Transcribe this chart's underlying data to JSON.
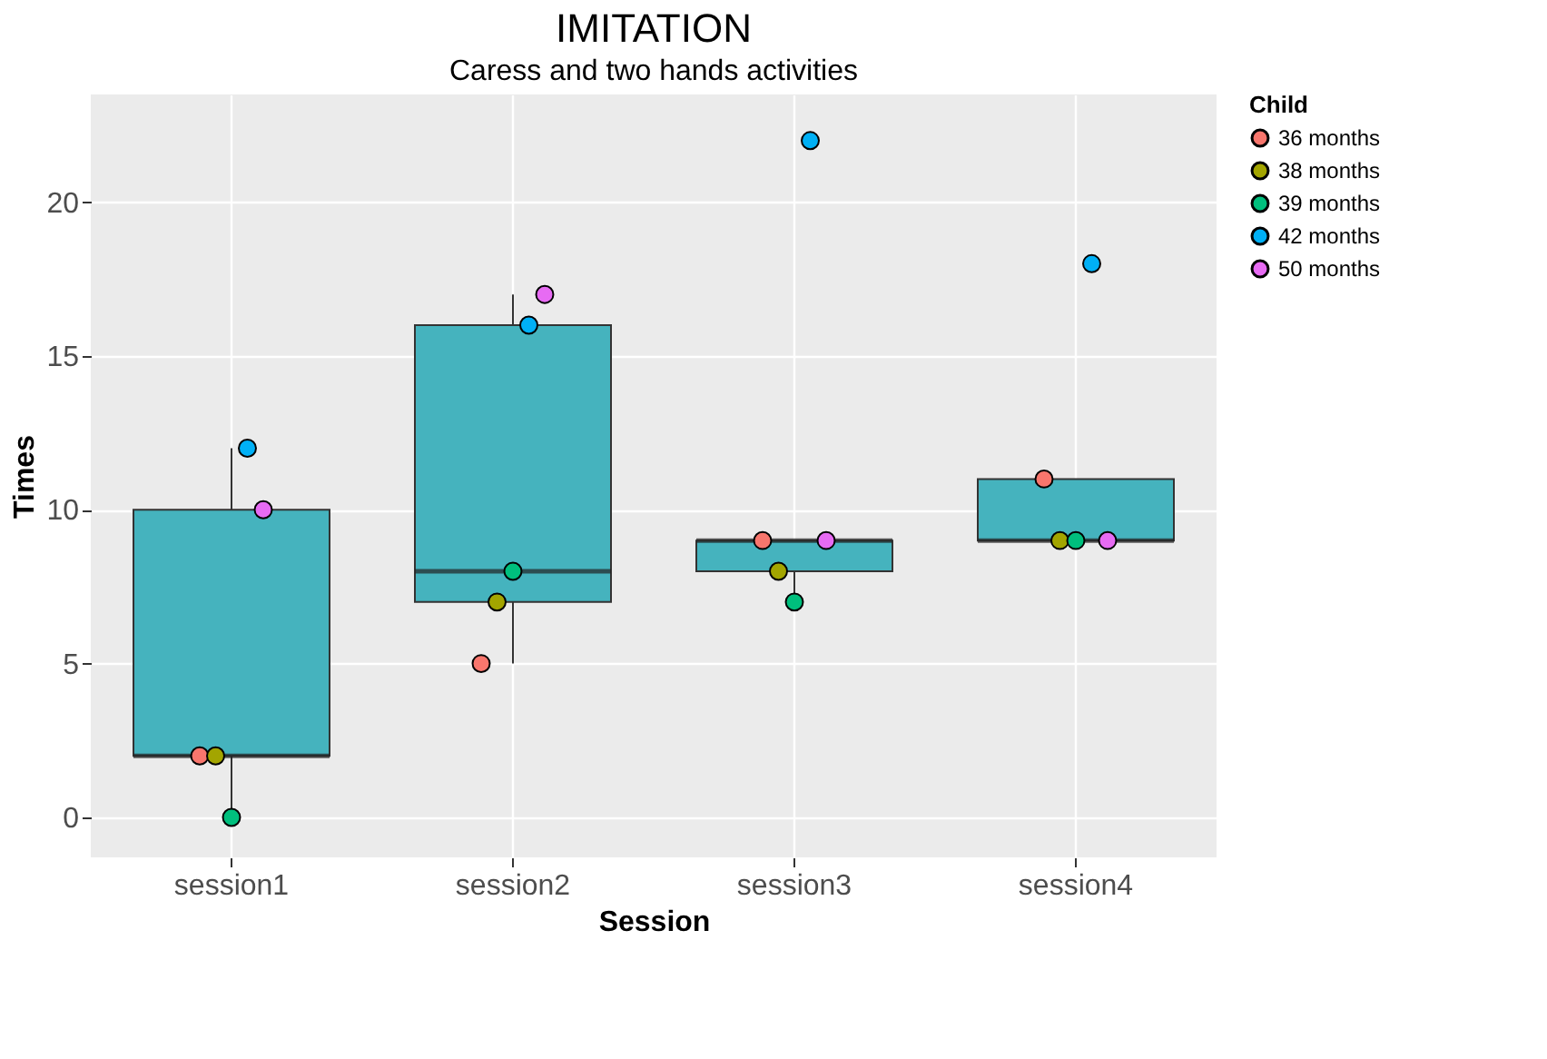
{
  "chart_data": {
    "type": "box",
    "title": "IMITATION",
    "subtitle": "Caress and two hands activities",
    "xlabel": "Session",
    "ylabel": "Times",
    "legend_title": "Child",
    "categories": [
      "session1",
      "session2",
      "session3",
      "session4"
    ],
    "color": "#45B3BE",
    "boxes": [
      {
        "low": 0,
        "q1": 2,
        "median": 2,
        "q3": 10,
        "high": 12
      },
      {
        "low": 5,
        "q1": 7,
        "median": 8,
        "q3": 16,
        "high": 17
      },
      {
        "low": 7,
        "q1": 8,
        "median": 9,
        "q3": 9,
        "high": 9
      },
      {
        "low": 9,
        "q1": 9,
        "median": 9,
        "q3": 11,
        "high": 11
      }
    ],
    "series": [
      {
        "name": "36 months",
        "type": "scatter",
        "color": "#F8766D",
        "x": [
          "session1",
          "session2",
          "session3",
          "session4"
        ],
        "values": [
          2,
          5,
          9,
          11
        ]
      },
      {
        "name": "38 months",
        "type": "scatter",
        "color": "#A3A500",
        "x": [
          "session1",
          "session2",
          "session3",
          "session4"
        ],
        "values": [
          2,
          7,
          8,
          9
        ]
      },
      {
        "name": "39 months",
        "type": "scatter",
        "color": "#00BF7D",
        "x": [
          "session1",
          "session2",
          "session3",
          "session4"
        ],
        "values": [
          0,
          8,
          7,
          9
        ]
      },
      {
        "name": "42 months",
        "type": "scatter",
        "color": "#00B0F6",
        "x": [
          "session1",
          "session2",
          "session3",
          "session4"
        ],
        "values": [
          12,
          16,
          22,
          18
        ]
      },
      {
        "name": "50 months",
        "type": "scatter",
        "color": "#E76BF3",
        "x": [
          "session1",
          "session2",
          "session3",
          "session4"
        ],
        "values": [
          10,
          17,
          9,
          9
        ]
      }
    ],
    "ylim": [
      -1.3,
      23.5
    ],
    "yticks": [
      0,
      5,
      10,
      15,
      20
    ],
    "grid": true,
    "legend": "right",
    "marker": "circle"
  }
}
